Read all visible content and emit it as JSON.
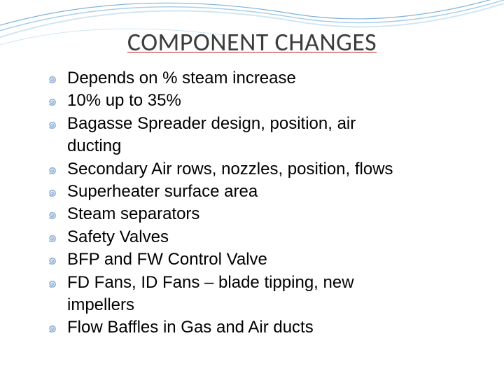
{
  "title": "COMPONENT CHANGES",
  "title_color": "#3c3c3c",
  "title_underline_color": "#b02222",
  "title_fontsize": 36,
  "bullet_glyph": "๑",
  "bullet_color": "#95b3d7",
  "body_fontsize": 24,
  "body_color": "#000000",
  "background_color": "#ffffff",
  "swoosh_colors": [
    "#7fb2d9",
    "#a8cfe8",
    "#d0e6f3"
  ],
  "items": [
    {
      "text": "Depends on % steam increase"
    },
    {
      "text": "10% up to 35%"
    },
    {
      "text": "Bagasse Spreader design, position, air",
      "cont": "ducting"
    },
    {
      "text": "Secondary Air rows, nozzles, position, flows"
    },
    {
      "text": "Superheater surface area"
    },
    {
      "text": "Steam separators"
    },
    {
      "text": "Safety Valves"
    },
    {
      "text": "BFP and FW Control Valve"
    },
    {
      "text": "FD Fans, ID Fans – blade tipping, new",
      "cont": "impellers"
    },
    {
      "text": "Flow Baffles in Gas and Air ducts"
    }
  ]
}
